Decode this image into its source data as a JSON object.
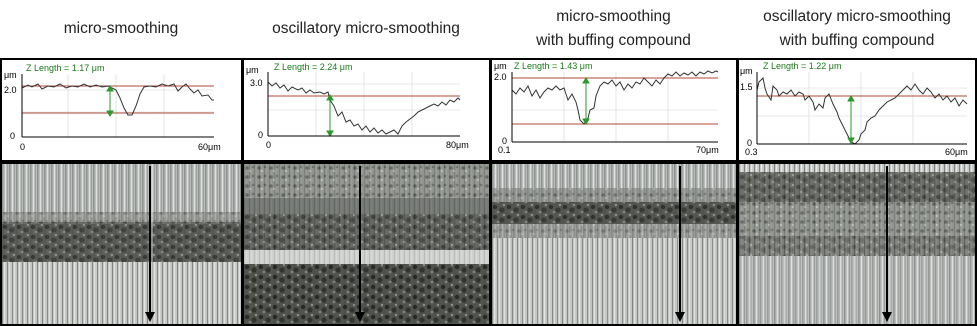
{
  "columns": [
    {
      "title_lines": [
        "micro-smoothing"
      ],
      "z_length": "Z Length = 1.17 μm",
      "y_unit": "μm",
      "y_top": "2.0",
      "y_bottom": "0",
      "x_start": "0",
      "x_end": "60μm"
    },
    {
      "title_lines": [
        "oscillatory micro-smoothing"
      ],
      "z_length": "Z Length = 2.24 μm",
      "y_unit": "μm",
      "y_top": "3.0",
      "y_bottom": "0",
      "x_start": "0",
      "x_end": "80μm"
    },
    {
      "title_lines": [
        "micro-smoothing",
        "with buffing compound"
      ],
      "z_length": "Z Length = 1.43 μm",
      "y_unit": "μm",
      "y_top": "2.0",
      "y_bottom": "0",
      "x_start": "0.1",
      "x_end": "70μm"
    },
    {
      "title_lines": [
        "oscillatory micro-smoothing",
        "with buffing compound"
      ],
      "z_length": "Z Length = 1.22 μm",
      "y_unit": "μm",
      "y_top": "1.5",
      "y_bottom": "0",
      "x_start": "0.3",
      "x_end": "60μm"
    }
  ],
  "colors": {
    "profile": "#333333",
    "reference_line": "#b04a3a",
    "z_marker": "#2a9a2a",
    "grid": "#d6d6d6"
  }
}
